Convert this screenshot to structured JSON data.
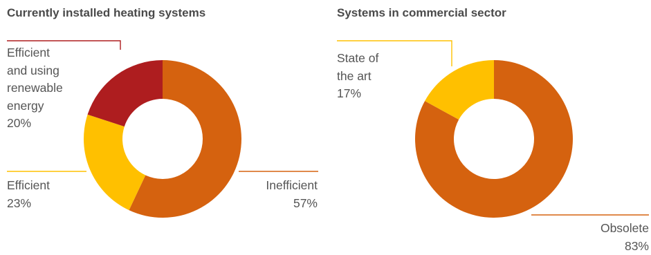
{
  "chart_data": [
    {
      "type": "pie",
      "style": "donut",
      "title": "Currently installed heating systems",
      "slices": [
        {
          "label": "Inefficient",
          "value": 57,
          "display": "57%",
          "color": "#D5620F"
        },
        {
          "label": "Efficient",
          "value": 23,
          "display": "23%",
          "color": "#FFC000"
        },
        {
          "label": "Efficient\nand using\nrenewable\nenergy",
          "value": 20,
          "display": "20%",
          "color": "#AE1D1F"
        }
      ]
    },
    {
      "type": "pie",
      "style": "donut",
      "title": "Systems in commercial sector",
      "slices": [
        {
          "label": "Obsolete",
          "value": 83,
          "display": "83%",
          "color": "#D5620F"
        },
        {
          "label": "State of\nthe art",
          "value": 17,
          "display": "17%",
          "color": "#FFC000"
        }
      ]
    }
  ]
}
